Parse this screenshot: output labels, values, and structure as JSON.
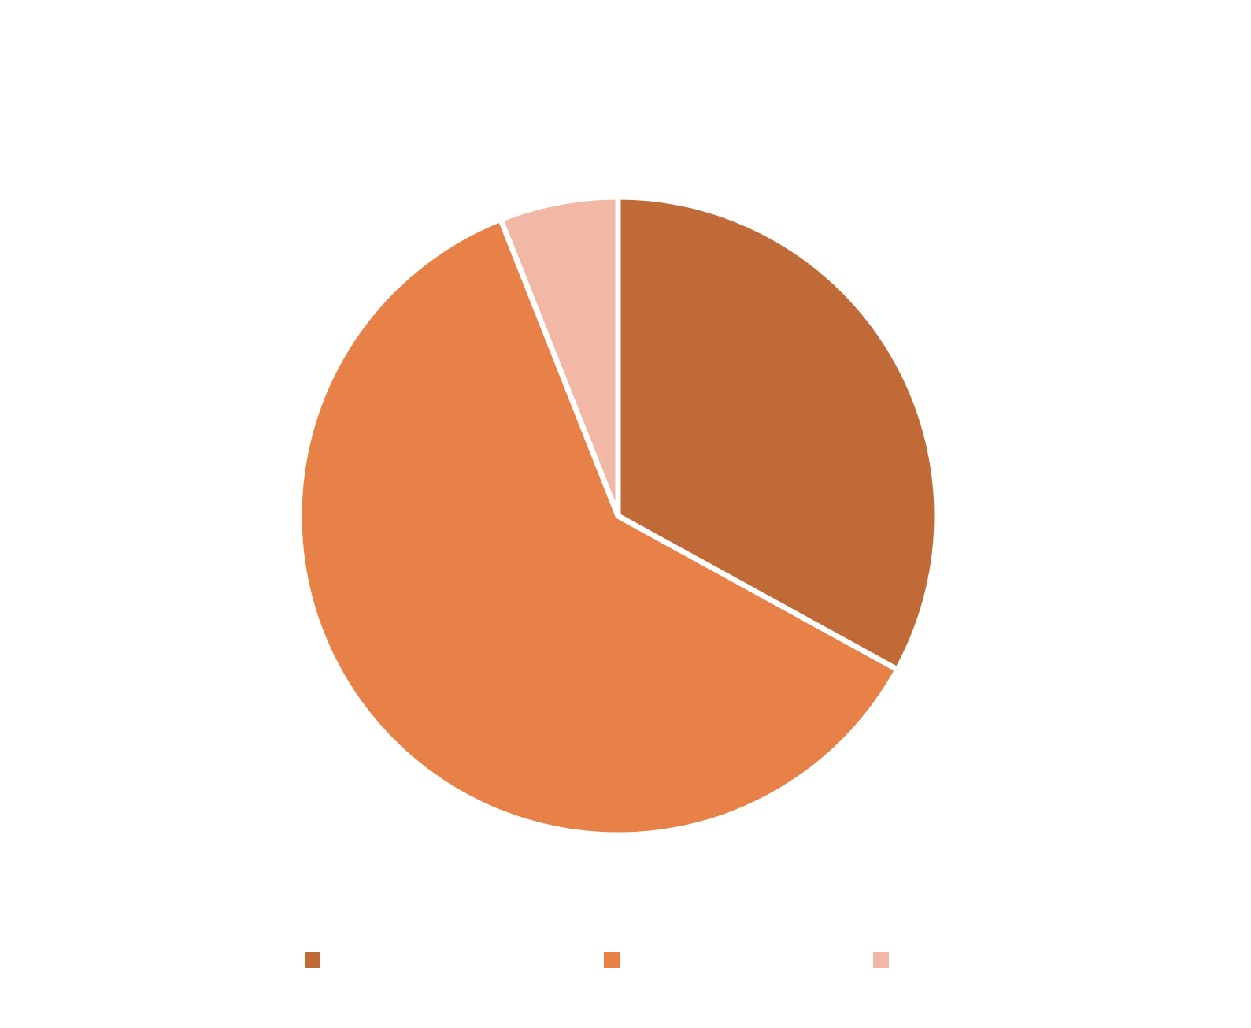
{
  "chart_data": {
    "type": "pie",
    "title": "",
    "start_angle": "12 o'clock",
    "direction": "clockwise",
    "legend_position": "bottom",
    "slices": [
      {
        "label": "",
        "value": 33,
        "color": "#BF6A37"
      },
      {
        "label": "",
        "value": 61,
        "color": "#E78148"
      },
      {
        "label": "",
        "value": 6,
        "color": "#F1B8A5"
      }
    ]
  }
}
